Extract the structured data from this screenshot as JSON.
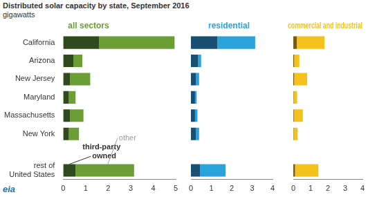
{
  "title": "Distributed solar capacity by state, September 2016",
  "subtitle": "gigawatts",
  "annotations": [
    {
      "text": "eia"
    }
  ],
  "chart_data": [
    {
      "type": "bar",
      "title": "all sectors",
      "orientation": "horizontal",
      "stacked": true,
      "grid": false,
      "tick_labels": true,
      "categories": [
        "California",
        "Arizona",
        "New Jersey",
        "Maryland",
        "Massachusetts",
        "New York",
        null,
        "rest of United States"
      ],
      "series": [
        {
          "name": "third-party owned",
          "color": "#2e4a1e",
          "values": [
            1.6,
            0.45,
            0.3,
            0.25,
            0.3,
            0.25,
            null,
            0.55
          ]
        },
        {
          "name": "other",
          "color": "#6b9e34",
          "values": [
            3.35,
            0.4,
            0.9,
            0.3,
            0.6,
            0.45,
            null,
            2.6
          ]
        }
      ],
      "xlim": [
        0,
        5
      ],
      "xticks": [
        0,
        1,
        2,
        3,
        4,
        5
      ]
    },
    {
      "type": "bar",
      "title": "residential",
      "orientation": "horizontal",
      "stacked": true,
      "grid": false,
      "tick_labels": "x",
      "categories": [
        "California",
        "Arizona",
        "New Jersey",
        "Maryland",
        "Massachusetts",
        "New York",
        null,
        "rest of United States"
      ],
      "series": [
        {
          "color": "#1a4f74",
          "values": [
            1.3,
            0.35,
            0.25,
            0.2,
            0.2,
            0.25,
            null,
            0.45
          ]
        },
        {
          "color": "#2aa3dc",
          "values": [
            1.85,
            0.15,
            0.15,
            0.08,
            0.12,
            0.15,
            null,
            1.25
          ]
        }
      ],
      "xlim": [
        0,
        4
      ],
      "xticks": [
        0,
        1,
        2,
        3,
        4
      ]
    },
    {
      "type": "bar",
      "title": "commercial and industrial",
      "orientation": "horizontal",
      "stacked": true,
      "grid": false,
      "tick_labels": "x",
      "categories": [
        "California",
        "Arizona",
        "New Jersey",
        "Maryland",
        "Massachusetts",
        "New York",
        null,
        "rest of United States"
      ],
      "series": [
        {
          "color": "#7a5a12",
          "values": [
            0.2,
            0.05,
            0.05,
            0.02,
            0.03,
            0.02,
            null,
            0.1
          ]
        },
        {
          "color": "#f5c21b",
          "values": [
            1.6,
            0.3,
            0.75,
            0.2,
            0.52,
            0.23,
            null,
            1.35
          ]
        }
      ],
      "xlim": [
        0,
        4
      ],
      "xticks": [
        0,
        1,
        2,
        3,
        4
      ]
    }
  ]
}
